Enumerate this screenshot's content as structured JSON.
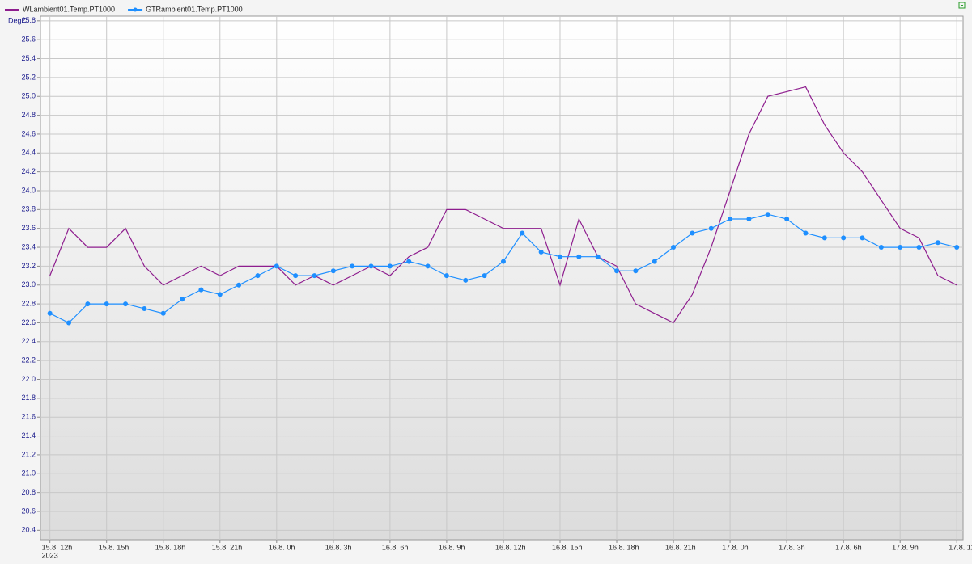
{
  "chart_data": {
    "type": "line",
    "y_unit": "DegC",
    "x_origin_label": "2023",
    "x": [
      "2023-08-15T12:00",
      "2023-08-15T13:00",
      "2023-08-15T14:00",
      "2023-08-15T15:00",
      "2023-08-15T16:00",
      "2023-08-15T17:00",
      "2023-08-15T18:00",
      "2023-08-15T19:00",
      "2023-08-15T20:00",
      "2023-08-15T21:00",
      "2023-08-15T22:00",
      "2023-08-15T23:00",
      "2023-08-16T00:00",
      "2023-08-16T01:00",
      "2023-08-16T02:00",
      "2023-08-16T03:00",
      "2023-08-16T04:00",
      "2023-08-16T05:00",
      "2023-08-16T06:00",
      "2023-08-16T07:00",
      "2023-08-16T08:00",
      "2023-08-16T09:00",
      "2023-08-16T10:00",
      "2023-08-16T11:00",
      "2023-08-16T12:00",
      "2023-08-16T13:00",
      "2023-08-16T14:00",
      "2023-08-16T15:00",
      "2023-08-16T16:00",
      "2023-08-16T17:00",
      "2023-08-16T18:00",
      "2023-08-16T19:00",
      "2023-08-16T20:00",
      "2023-08-16T21:00",
      "2023-08-16T22:00",
      "2023-08-16T23:00",
      "2023-08-17T00:00",
      "2023-08-17T01:00",
      "2023-08-17T02:00",
      "2023-08-17T03:00",
      "2023-08-17T04:00",
      "2023-08-17T05:00",
      "2023-08-17T06:00",
      "2023-08-17T07:00",
      "2023-08-17T08:00",
      "2023-08-17T09:00",
      "2023-08-17T10:00",
      "2023-08-17T11:00",
      "2023-08-17T12:00"
    ],
    "series": [
      {
        "name": "WLambient01.Temp.PT1000",
        "color": "#8e1d8e",
        "markers": false,
        "values": [
          23.1,
          23.6,
          23.4,
          23.4,
          23.6,
          23.2,
          23.0,
          23.1,
          23.2,
          23.1,
          23.2,
          23.2,
          23.2,
          23.0,
          23.1,
          23.0,
          23.1,
          23.2,
          23.1,
          23.3,
          23.4,
          23.8,
          23.8,
          23.7,
          23.6,
          23.6,
          23.6,
          23.0,
          23.7,
          23.3,
          23.2,
          22.8,
          22.7,
          22.6,
          22.9,
          23.4,
          24.0,
          24.6,
          25.0,
          25.05,
          25.1,
          24.7,
          24.4,
          24.2,
          23.9,
          23.6,
          23.5,
          23.1,
          23.0
        ]
      },
      {
        "name": "GTRambient01.Temp.PT1000",
        "color": "#1e8fff",
        "markers": true,
        "values": [
          22.7,
          22.6,
          22.8,
          22.8,
          22.8,
          22.75,
          22.7,
          22.85,
          22.95,
          22.9,
          23.0,
          23.1,
          23.2,
          23.1,
          23.1,
          23.15,
          23.2,
          23.2,
          23.2,
          23.25,
          23.2,
          23.1,
          23.05,
          23.1,
          23.25,
          23.55,
          23.35,
          23.3,
          23.3,
          23.3,
          23.15,
          23.15,
          23.25,
          23.4,
          23.55,
          23.6,
          23.7,
          23.7,
          23.75,
          23.7,
          23.55,
          23.5,
          23.5,
          23.5,
          23.4,
          23.4,
          23.4,
          23.45,
          23.4
        ]
      }
    ],
    "xlim": [
      "2023-08-15T11:30",
      "2023-08-17T12:20"
    ],
    "xticks": [
      {
        "value": "2023-08-15T12:00",
        "label": "15.8. 12h"
      },
      {
        "value": "2023-08-15T15:00",
        "label": "15.8. 15h"
      },
      {
        "value": "2023-08-15T18:00",
        "label": "15.8. 18h"
      },
      {
        "value": "2023-08-15T21:00",
        "label": "15.8. 21h"
      },
      {
        "value": "2023-08-16T00:00",
        "label": "16.8. 0h"
      },
      {
        "value": "2023-08-16T03:00",
        "label": "16.8. 3h"
      },
      {
        "value": "2023-08-16T06:00",
        "label": "16.8. 6h"
      },
      {
        "value": "2023-08-16T09:00",
        "label": "16.8. 9h"
      },
      {
        "value": "2023-08-16T12:00",
        "label": "16.8. 12h"
      },
      {
        "value": "2023-08-16T15:00",
        "label": "16.8. 15h"
      },
      {
        "value": "2023-08-16T18:00",
        "label": "16.8. 18h"
      },
      {
        "value": "2023-08-16T21:00",
        "label": "16.8. 21h"
      },
      {
        "value": "2023-08-17T00:00",
        "label": "17.8. 0h"
      },
      {
        "value": "2023-08-17T03:00",
        "label": "17.8. 3h"
      },
      {
        "value": "2023-08-17T06:00",
        "label": "17.8. 6h"
      },
      {
        "value": "2023-08-17T09:00",
        "label": "17.8. 9h"
      },
      {
        "value": "2023-08-17T12:00",
        "label": "17.8. 12h"
      }
    ],
    "ylim": [
      20.3,
      25.85
    ],
    "yticks": [
      20.4,
      20.6,
      20.8,
      {
        "value": 21.0,
        "label": "21.0"
      },
      21.2,
      21.4,
      21.6,
      21.8,
      {
        "value": 22.0,
        "label": "22.0"
      },
      22.2,
      22.4,
      22.6,
      22.8,
      {
        "value": 23.0,
        "label": "23.0"
      },
      23.2,
      23.4,
      23.6,
      23.8,
      {
        "value": 24.0,
        "label": "24.0"
      },
      24.2,
      24.4,
      24.6,
      24.8,
      {
        "value": 25.0,
        "label": "25.0"
      },
      25.2,
      25.4,
      25.6,
      25.8
    ],
    "grid": true
  }
}
